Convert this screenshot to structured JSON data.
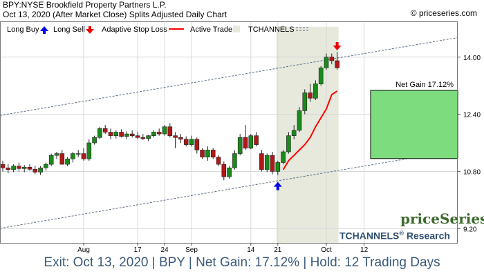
{
  "header": {
    "title": "BPY:NYSE Brookfield Property Partners L.P.",
    "subtitle": "Oct 13, 2020 (After Market Close)  Splits Adjusted Daily Chart",
    "site": "© priceseries.com"
  },
  "legend": {
    "long_buy": "Long Buy",
    "long_sell": "Long Sell",
    "stop_loss": "Adaptive Stop Loss",
    "active_trade": "Active Trade",
    "tchannels": "TCHANNELS"
  },
  "brand": {
    "logo": "priceSeries",
    "tagline": "TCHANNELS",
    "reg": "®",
    "research": " Research"
  },
  "footer": {
    "summary": "Exit: Oct 13, 2020 | BPY | Net Gain: 17.12% | Hold: 12 Trading Days"
  },
  "colors": {
    "up": "#1a8a1a",
    "down": "#b01818",
    "stop": "#ff0000",
    "active_bg": "#e6e9dc",
    "gain_box": "#7ddc7d",
    "channel": "#5a6a8a",
    "buy_arrow": "#0000ee",
    "sell_arrow": "#ee0000"
  },
  "chart_data": {
    "type": "candlestick",
    "ylim": [
      8.8,
      15.0
    ],
    "y_ticks": [
      9.2,
      10.8,
      12.4,
      14.0
    ],
    "y_tick_labels": [
      "9.20",
      "10.80",
      "12.40",
      "14.00"
    ],
    "x_ticks": [
      {
        "label": "Aug",
        "index": 15
      },
      {
        "label": "17",
        "index": 25
      },
      {
        "label": "24",
        "index": 30
      },
      {
        "label": "Sep",
        "index": 35
      },
      {
        "label": "14",
        "index": 46
      },
      {
        "label": "21",
        "index": 51
      },
      {
        "label": "Oct",
        "index": 60
      },
      {
        "label": "12",
        "index": 67
      }
    ],
    "candles": [
      {
        "o": 11.0,
        "h": 11.1,
        "l": 10.8,
        "c": 10.9
      },
      {
        "o": 10.9,
        "h": 11.0,
        "l": 10.75,
        "c": 10.85
      },
      {
        "o": 10.85,
        "h": 11.0,
        "l": 10.78,
        "c": 10.95
      },
      {
        "o": 10.95,
        "h": 11.05,
        "l": 10.8,
        "c": 10.88
      },
      {
        "o": 10.88,
        "h": 10.98,
        "l": 10.78,
        "c": 10.92
      },
      {
        "o": 10.92,
        "h": 11.0,
        "l": 10.82,
        "c": 10.86
      },
      {
        "o": 10.86,
        "h": 10.95,
        "l": 10.72,
        "c": 10.78
      },
      {
        "o": 10.78,
        "h": 10.95,
        "l": 10.7,
        "c": 10.9
      },
      {
        "o": 10.9,
        "h": 11.05,
        "l": 10.82,
        "c": 11.0
      },
      {
        "o": 11.0,
        "h": 11.3,
        "l": 10.95,
        "c": 11.25
      },
      {
        "o": 11.25,
        "h": 11.35,
        "l": 11.15,
        "c": 11.3
      },
      {
        "o": 11.3,
        "h": 11.4,
        "l": 11.0,
        "c": 11.0
      },
      {
        "o": 11.0,
        "h": 11.2,
        "l": 10.95,
        "c": 11.15
      },
      {
        "o": 11.15,
        "h": 11.35,
        "l": 11.05,
        "c": 11.3
      },
      {
        "o": 11.3,
        "h": 11.4,
        "l": 11.2,
        "c": 11.3
      },
      {
        "o": 11.3,
        "h": 11.45,
        "l": 11.1,
        "c": 11.15
      },
      {
        "o": 11.15,
        "h": 11.7,
        "l": 11.1,
        "c": 11.6
      },
      {
        "o": 11.6,
        "h": 11.8,
        "l": 11.55,
        "c": 11.75
      },
      {
        "o": 11.75,
        "h": 12.05,
        "l": 11.7,
        "c": 12.0
      },
      {
        "o": 12.0,
        "h": 12.1,
        "l": 11.85,
        "c": 11.9
      },
      {
        "o": 11.9,
        "h": 12.0,
        "l": 11.7,
        "c": 11.8
      },
      {
        "o": 11.8,
        "h": 11.95,
        "l": 11.72,
        "c": 11.9
      },
      {
        "o": 11.9,
        "h": 11.98,
        "l": 11.75,
        "c": 11.78
      },
      {
        "o": 11.78,
        "h": 11.92,
        "l": 11.7,
        "c": 11.85
      },
      {
        "o": 11.85,
        "h": 11.95,
        "l": 11.75,
        "c": 11.8
      },
      {
        "o": 11.8,
        "h": 11.9,
        "l": 11.7,
        "c": 11.75
      },
      {
        "o": 11.75,
        "h": 11.85,
        "l": 11.68,
        "c": 11.72
      },
      {
        "o": 11.72,
        "h": 11.82,
        "l": 11.65,
        "c": 11.8
      },
      {
        "o": 11.8,
        "h": 11.95,
        "l": 11.75,
        "c": 11.9
      },
      {
        "o": 11.9,
        "h": 12.0,
        "l": 11.8,
        "c": 11.85
      },
      {
        "o": 11.85,
        "h": 12.1,
        "l": 11.8,
        "c": 12.05
      },
      {
        "o": 12.05,
        "h": 12.15,
        "l": 11.75,
        "c": 11.8
      },
      {
        "o": 11.8,
        "h": 11.9,
        "l": 11.45,
        "c": 11.75
      },
      {
        "o": 11.75,
        "h": 11.85,
        "l": 11.6,
        "c": 11.7
      },
      {
        "o": 11.7,
        "h": 11.78,
        "l": 11.5,
        "c": 11.55
      },
      {
        "o": 11.55,
        "h": 11.8,
        "l": 11.5,
        "c": 11.7
      },
      {
        "o": 11.7,
        "h": 11.75,
        "l": 11.3,
        "c": 11.4
      },
      {
        "o": 11.4,
        "h": 11.45,
        "l": 11.15,
        "c": 11.2
      },
      {
        "o": 11.2,
        "h": 11.5,
        "l": 11.1,
        "c": 11.4
      },
      {
        "o": 11.4,
        "h": 11.45,
        "l": 11.15,
        "c": 11.2
      },
      {
        "o": 11.2,
        "h": 11.25,
        "l": 10.95,
        "c": 11.0
      },
      {
        "o": 11.0,
        "h": 11.08,
        "l": 10.55,
        "c": 10.65
      },
      {
        "o": 10.65,
        "h": 10.95,
        "l": 10.6,
        "c": 10.9
      },
      {
        "o": 10.9,
        "h": 11.4,
        "l": 10.85,
        "c": 11.3
      },
      {
        "o": 11.3,
        "h": 11.85,
        "l": 11.25,
        "c": 11.75
      },
      {
        "o": 11.75,
        "h": 12.1,
        "l": 11.4,
        "c": 11.45
      },
      {
        "o": 11.45,
        "h": 11.85,
        "l": 11.42,
        "c": 11.8
      },
      {
        "o": 11.8,
        "h": 11.9,
        "l": 11.5,
        "c": 11.55
      },
      {
        "o": 11.3,
        "h": 11.4,
        "l": 10.8,
        "c": 10.85
      },
      {
        "o": 10.85,
        "h": 11.3,
        "l": 10.78,
        "c": 11.25
      },
      {
        "o": 11.25,
        "h": 11.35,
        "l": 10.72,
        "c": 10.8
      },
      {
        "o": 10.8,
        "h": 11.1,
        "l": 10.7,
        "c": 11.05
      },
      {
        "o": 11.05,
        "h": 11.4,
        "l": 11.0,
        "c": 11.35
      },
      {
        "o": 11.35,
        "h": 11.9,
        "l": 11.3,
        "c": 11.8
      },
      {
        "o": 11.8,
        "h": 12.1,
        "l": 11.7,
        "c": 11.95
      },
      {
        "o": 11.95,
        "h": 12.6,
        "l": 11.9,
        "c": 12.5
      },
      {
        "o": 12.5,
        "h": 13.1,
        "l": 12.4,
        "c": 13.0
      },
      {
        "o": 13.0,
        "h": 13.25,
        "l": 12.75,
        "c": 12.85
      },
      {
        "o": 12.85,
        "h": 13.35,
        "l": 12.8,
        "c": 13.25
      },
      {
        "o": 13.25,
        "h": 13.75,
        "l": 13.2,
        "c": 13.7
      },
      {
        "o": 13.7,
        "h": 14.1,
        "l": 13.65,
        "c": 14.0
      },
      {
        "o": 14.0,
        "h": 14.1,
        "l": 13.8,
        "c": 13.9
      },
      {
        "o": 13.9,
        "h": 14.15,
        "l": 13.65,
        "c": 13.7
      }
    ],
    "stop_loss": [
      {
        "index": 52,
        "value": 10.85
      },
      {
        "index": 53,
        "value": 11.1
      },
      {
        "index": 54,
        "value": 11.25
      },
      {
        "index": 55,
        "value": 11.4
      },
      {
        "index": 56,
        "value": 11.55
      },
      {
        "index": 57,
        "value": 11.75
      },
      {
        "index": 58,
        "value": 12.05
      },
      {
        "index": 59,
        "value": 12.3
      },
      {
        "index": 60,
        "value": 12.55
      },
      {
        "index": 61,
        "value": 12.95
      },
      {
        "index": 62,
        "value": 13.05
      }
    ],
    "channel_upper": [
      {
        "index": 0,
        "value": 12.38
      },
      {
        "index": 67,
        "value": 14.1
      }
    ],
    "channel_lower": [
      {
        "index": 0,
        "value": 9.22
      },
      {
        "index": 67,
        "value": 10.95
      }
    ],
    "active_trade": {
      "start_index": 51,
      "end_index": 62
    },
    "buy": {
      "index": 51,
      "price": 10.7
    },
    "sell": {
      "index": 62,
      "price": 14.15
    },
    "net_gain": {
      "label": "Net Gain 17.12%",
      "from": 11.16,
      "to": 13.07
    }
  }
}
